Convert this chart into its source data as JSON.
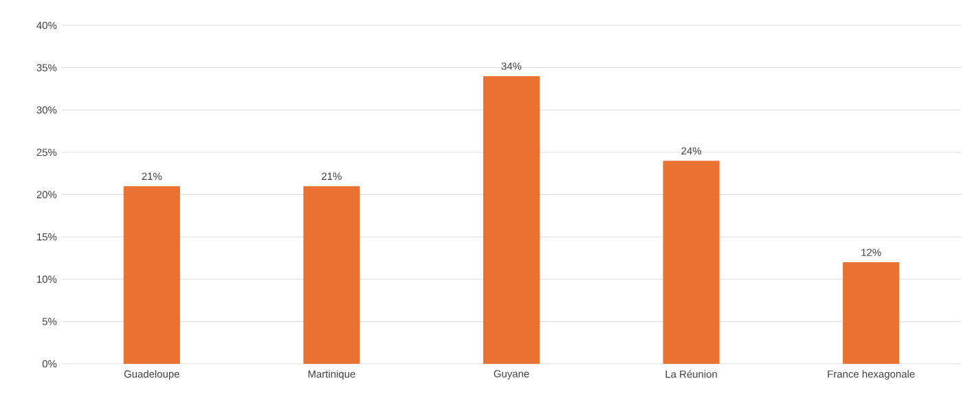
{
  "chart_data": {
    "type": "bar",
    "categories": [
      "Guadeloupe",
      "Martinique",
      "Guyane",
      "La Réunion",
      "France hexagonale"
    ],
    "values": [
      21,
      21,
      34,
      24,
      12
    ],
    "value_labels": [
      "21%",
      "21%",
      "34%",
      "24%",
      "12%"
    ],
    "color": "#e97132",
    "ylim": [
      0,
      40
    ],
    "yticks": [
      {
        "value": 0,
        "label": "0%"
      },
      {
        "value": 5,
        "label": "5%"
      },
      {
        "value": 10,
        "label": "10%"
      },
      {
        "value": 15,
        "label": "15%"
      },
      {
        "value": 20,
        "label": "20%"
      },
      {
        "value": 25,
        "label": "25%"
      },
      {
        "value": 30,
        "label": "30%"
      },
      {
        "value": 35,
        "label": "35%"
      },
      {
        "value": 40,
        "label": "40%"
      }
    ],
    "grid": "y"
  }
}
